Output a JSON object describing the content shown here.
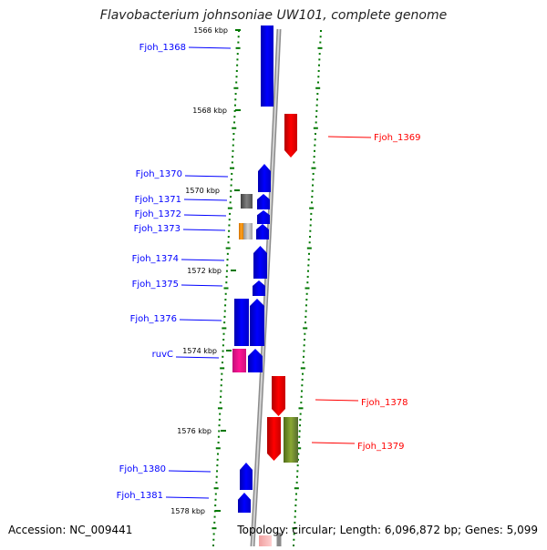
{
  "title": "Flavobacterium johnsoniae UW101, complete genome",
  "accession": "Accession: NC_009441",
  "topology": "Topology: circular; Length: 6,096,872 bp; Genes: 5,099",
  "ticks": [
    {
      "label": "1566 kbp"
    },
    {
      "label": "1568 kbp"
    },
    {
      "label": "1570 kbp"
    },
    {
      "label": "1572 kbp"
    },
    {
      "label": "1574 kbp"
    },
    {
      "label": "1576 kbp"
    },
    {
      "label": "1578 kbp"
    }
  ],
  "genes": [
    {
      "name": "Fjoh_1368",
      "strand": "plus",
      "color": "#0000ff"
    },
    {
      "name": "Fjoh_1369",
      "strand": "minus",
      "color": "#ff0000"
    },
    {
      "name": "Fjoh_1370",
      "strand": "plus",
      "color": "#0000ff"
    },
    {
      "name": "Fjoh_1371",
      "strand": "plus",
      "color": "#0000ff"
    },
    {
      "name": "Fjoh_1372",
      "strand": "plus",
      "color": "#0000ff"
    },
    {
      "name": "Fjoh_1373",
      "strand": "plus",
      "color": "#0000ff"
    },
    {
      "name": "Fjoh_1374",
      "strand": "plus",
      "color": "#0000ff"
    },
    {
      "name": "Fjoh_1375",
      "strand": "plus",
      "color": "#0000ff"
    },
    {
      "name": "Fjoh_1376",
      "strand": "plus",
      "color": "#0000ff"
    },
    {
      "name": "ruvC",
      "strand": "plus",
      "color": "#0000ff"
    },
    {
      "name": "Fjoh_1378",
      "strand": "minus",
      "color": "#ff0000"
    },
    {
      "name": "Fjoh_1379",
      "strand": "minus",
      "color": "#ff0000"
    },
    {
      "name": "Fjoh_1380",
      "strand": "plus",
      "color": "#0000ff"
    },
    {
      "name": "Fjoh_1381",
      "strand": "plus",
      "color": "#0000ff"
    }
  ],
  "colors": {
    "cds_plus": "#0000ff",
    "cds_minus": "#ff0000",
    "trna": "#ff8c00",
    "rrna": "#a0a0a0",
    "other_cog": "#606060",
    "cog_magenta": "#ff1493",
    "cog_olive": "#6b8e23",
    "backbone": "#999999",
    "gc_dots": "#007700"
  }
}
